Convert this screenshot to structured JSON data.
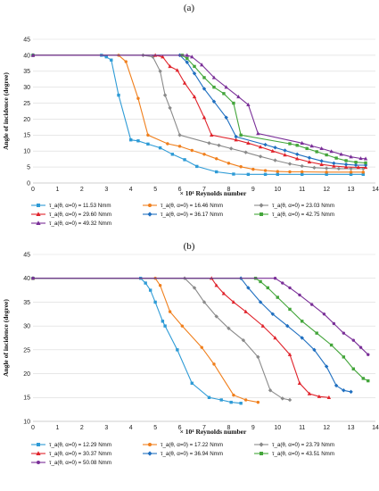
{
  "chart_data": [
    {
      "type": "line",
      "panel_label": "(a)",
      "xlabel": "Reynolds number",
      "xlabel_prefix": "× 10⁴",
      "ylabel": "Angle of incidence (degree)",
      "xlim": [
        0,
        14
      ],
      "ylim": [
        0,
        45
      ],
      "xticks": [
        0,
        1,
        2,
        3,
        4,
        5,
        6,
        7,
        8,
        9,
        10,
        11,
        12,
        13,
        14
      ],
      "yticks": [
        0,
        5,
        10,
        15,
        20,
        25,
        30,
        35,
        40,
        45
      ],
      "grid": "horizontal",
      "legend_position": "bottom",
      "series": [
        {
          "name": "τ_a(θ, α=0) = 11.53 Nmm",
          "color": "#2e9bd6",
          "marker": "square",
          "points": [
            [
              0,
              40
            ],
            [
              2.8,
              40
            ],
            [
              3.0,
              39.5
            ],
            [
              3.2,
              38.5
            ],
            [
              3.5,
              27.5
            ],
            [
              4.0,
              13.5
            ],
            [
              4.3,
              13.2
            ],
            [
              4.7,
              12.2
            ],
            [
              5.2,
              11
            ],
            [
              5.7,
              9
            ],
            [
              6.2,
              7.3
            ],
            [
              6.7,
              5.2
            ],
            [
              7.5,
              3.5
            ],
            [
              8.2,
              2.8
            ],
            [
              8.8,
              2.7
            ],
            [
              9.5,
              2.7
            ],
            [
              10,
              2.7
            ],
            [
              11,
              2.7
            ],
            [
              12,
              2.7
            ],
            [
              13,
              2.7
            ],
            [
              13.5,
              2.7
            ]
          ]
        },
        {
          "name": "τ_a(θ, α=0) = 16.46 Nmm",
          "color": "#f07f1c",
          "marker": "circle",
          "points": [
            [
              0,
              40
            ],
            [
              3.5,
              40
            ],
            [
              3.8,
              38
            ],
            [
              4.3,
              26.5
            ],
            [
              4.7,
              15
            ],
            [
              5.5,
              12.3
            ],
            [
              6.0,
              11.5
            ],
            [
              6.5,
              10.2
            ],
            [
              7.0,
              9
            ],
            [
              7.5,
              7.6
            ],
            [
              8.0,
              6.2
            ],
            [
              8.5,
              5.1
            ],
            [
              9.0,
              4.3
            ],
            [
              9.5,
              3.9
            ],
            [
              10,
              3.6
            ],
            [
              10.5,
              3.5
            ],
            [
              11,
              3.5
            ],
            [
              12,
              3.4
            ],
            [
              13,
              3.4
            ],
            [
              13.5,
              3.4
            ]
          ]
        },
        {
          "name": "τ_a(θ, α=0) = 23.03 Nmm",
          "color": "#8a8a8a",
          "marker": "diamond",
          "points": [
            [
              0,
              40
            ],
            [
              4.5,
              40
            ],
            [
              4.9,
              39.5
            ],
            [
              5.2,
              35
            ],
            [
              5.4,
              27.5
            ],
            [
              5.6,
              23.5
            ],
            [
              6.0,
              15
            ],
            [
              7.2,
              12.5
            ],
            [
              7.6,
              11.8
            ],
            [
              8.1,
              10.8
            ],
            [
              8.7,
              9.6
            ],
            [
              9.3,
              8.3
            ],
            [
              9.9,
              7.1
            ],
            [
              10.5,
              6
            ],
            [
              11,
              5.3
            ],
            [
              11.5,
              4.8
            ],
            [
              12,
              4.6
            ],
            [
              12.5,
              4.5
            ],
            [
              13,
              4.5
            ],
            [
              13.5,
              4.5
            ]
          ]
        },
        {
          "name": "τ_a(θ, α=0) = 29.60 Nmm",
          "color": "#e0232b",
          "marker": "triangle",
          "points": [
            [
              0,
              40
            ],
            [
              5.0,
              40
            ],
            [
              5.3,
              39.5
            ],
            [
              5.6,
              36.5
            ],
            [
              5.9,
              35.3
            ],
            [
              6.2,
              31.3
            ],
            [
              6.6,
              27
            ],
            [
              7.0,
              20.5
            ],
            [
              7.3,
              15
            ],
            [
              8.3,
              13.5
            ],
            [
              8.8,
              12.5
            ],
            [
              9.3,
              11.3
            ],
            [
              9.8,
              10
            ],
            [
              10.3,
              8.8
            ],
            [
              10.8,
              7.6
            ],
            [
              11.3,
              6.6
            ],
            [
              11.8,
              5.8
            ],
            [
              12.3,
              5.3
            ],
            [
              12.8,
              5
            ],
            [
              13.3,
              4.9
            ],
            [
              13.6,
              4.9
            ]
          ]
        },
        {
          "name": "τ_a(θ, α=0) = 36.17 Nmm",
          "color": "#1f6fc0",
          "marker": "diamond",
          "points": [
            [
              0,
              40
            ],
            [
              6.0,
              40
            ],
            [
              6.3,
              37.8
            ],
            [
              6.6,
              34.3
            ],
            [
              7.0,
              29.5
            ],
            [
              7.4,
              25.5
            ],
            [
              7.9,
              20.5
            ],
            [
              8.3,
              14.5
            ],
            [
              9.5,
              12
            ],
            [
              9.9,
              11.1
            ],
            [
              10.3,
              10.2
            ],
            [
              10.8,
              9
            ],
            [
              11.3,
              7.9
            ],
            [
              11.8,
              6.9
            ],
            [
              12.3,
              6.2
            ],
            [
              12.8,
              5.8
            ],
            [
              13.2,
              5.6
            ],
            [
              13.6,
              5.6
            ]
          ]
        },
        {
          "name": "τ_a(θ, α=0) = 42.75 Nmm",
          "color": "#43a53a",
          "marker": "square",
          "points": [
            [
              0,
              40
            ],
            [
              6.1,
              40
            ],
            [
              6.3,
              39
            ],
            [
              6.6,
              36.5
            ],
            [
              7.0,
              33
            ],
            [
              7.4,
              30
            ],
            [
              7.8,
              28
            ],
            [
              8.2,
              25
            ],
            [
              8.5,
              15
            ],
            [
              10.5,
              12.3
            ],
            [
              10.8,
              11.8
            ],
            [
              11.2,
              10.8
            ],
            [
              11.6,
              9.8
            ],
            [
              12.0,
              8.8
            ],
            [
              12.4,
              7.8
            ],
            [
              12.8,
              7
            ],
            [
              13.2,
              6.5
            ],
            [
              13.6,
              6.3
            ]
          ]
        },
        {
          "name": "τ_a(θ, α=0) = 49.32 Nmm",
          "color": "#7a2f98",
          "marker": "triangle",
          "points": [
            [
              0,
              40
            ],
            [
              6.3,
              40
            ],
            [
              6.5,
              39.5
            ],
            [
              6.9,
              37
            ],
            [
              7.4,
              33
            ],
            [
              7.9,
              30
            ],
            [
              8.4,
              27
            ],
            [
              8.8,
              24.5
            ],
            [
              9.2,
              15.5
            ],
            [
              11.0,
              12.5
            ],
            [
              11.4,
              11.6
            ],
            [
              11.8,
              10.8
            ],
            [
              12.2,
              9.9
            ],
            [
              12.6,
              9
            ],
            [
              13.0,
              8.2
            ],
            [
              13.4,
              7.7
            ],
            [
              13.6,
              7.6
            ]
          ]
        }
      ]
    },
    {
      "type": "line",
      "panel_label": "(b)",
      "xlabel": "Reynolds number",
      "xlabel_prefix": "× 10⁴",
      "ylabel": "Angle of incidence (degree)",
      "xlim": [
        0,
        14
      ],
      "ylim": [
        10,
        45
      ],
      "xticks": [
        0,
        1,
        2,
        3,
        4,
        5,
        6,
        7,
        8,
        9,
        10,
        11,
        12,
        13,
        14
      ],
      "yticks": [
        10,
        15,
        20,
        25,
        30,
        35,
        40,
        45
      ],
      "grid": "horizontal",
      "legend_position": "bottom",
      "series": [
        {
          "name": "τ_a(θ, α=0) = 12.29 Nmm",
          "color": "#2e9bd6",
          "marker": "square",
          "points": [
            [
              0,
              40
            ],
            [
              4.4,
              40
            ],
            [
              4.6,
              39
            ],
            [
              4.8,
              37.5
            ],
            [
              5.0,
              35
            ],
            [
              5.3,
              31
            ],
            [
              5.4,
              30
            ],
            [
              5.9,
              25
            ],
            [
              6.5,
              18
            ],
            [
              7.2,
              15
            ],
            [
              7.7,
              14.5
            ],
            [
              8.1,
              14
            ],
            [
              8.5,
              13.8
            ]
          ]
        },
        {
          "name": "τ_a(θ, α=0) = 17.22 Nmm",
          "color": "#f07f1c",
          "marker": "circle",
          "points": [
            [
              0,
              40
            ],
            [
              5.0,
              40
            ],
            [
              5.2,
              38.5
            ],
            [
              5.6,
              33
            ],
            [
              6.1,
              30
            ],
            [
              6.9,
              25.5
            ],
            [
              7.4,
              22
            ],
            [
              8.2,
              15.5
            ],
            [
              8.7,
              14.5
            ],
            [
              9.2,
              14
            ]
          ]
        },
        {
          "name": "τ_a(θ, α=0) = 23.79 Nmm",
          "color": "#8a8a8a",
          "marker": "diamond",
          "points": [
            [
              0,
              40
            ],
            [
              6.2,
              40
            ],
            [
              6.6,
              38
            ],
            [
              7.0,
              35
            ],
            [
              7.5,
              32
            ],
            [
              8.0,
              29.5
            ],
            [
              8.6,
              27
            ],
            [
              9.2,
              23.5
            ],
            [
              9.7,
              16.5
            ],
            [
              10.2,
              14.8
            ],
            [
              10.5,
              14.5
            ]
          ]
        },
        {
          "name": "τ_a(θ, α=0) = 30.37 Nmm",
          "color": "#e0232b",
          "marker": "triangle",
          "points": [
            [
              0,
              40
            ],
            [
              7.3,
              40
            ],
            [
              7.5,
              38.5
            ],
            [
              7.8,
              36.8
            ],
            [
              8.2,
              35
            ],
            [
              8.7,
              33
            ],
            [
              9.4,
              30
            ],
            [
              9.9,
              27.5
            ],
            [
              10.5,
              24
            ],
            [
              10.9,
              18
            ],
            [
              11.3,
              15.8
            ],
            [
              11.7,
              15.2
            ],
            [
              12.1,
              15
            ]
          ]
        },
        {
          "name": "τ_a(θ, α=0) = 36.94 Nmm",
          "color": "#1f6fc0",
          "marker": "diamond",
          "points": [
            [
              0,
              40
            ],
            [
              8.5,
              40
            ],
            [
              8.8,
              38
            ],
            [
              9.3,
              35
            ],
            [
              9.8,
              32.5
            ],
            [
              10.4,
              30
            ],
            [
              11.0,
              27.5
            ],
            [
              11.5,
              25
            ],
            [
              12.0,
              21.5
            ],
            [
              12.4,
              17.5
            ],
            [
              12.7,
              16.5
            ],
            [
              13.0,
              16.2
            ]
          ]
        },
        {
          "name": "τ_a(θ, α=0) = 43.51 Nmm",
          "color": "#43a53a",
          "marker": "square",
          "points": [
            [
              0,
              40
            ],
            [
              9.1,
              40
            ],
            [
              9.3,
              39.3
            ],
            [
              9.6,
              38
            ],
            [
              10.0,
              36
            ],
            [
              10.5,
              33.5
            ],
            [
              11.0,
              31
            ],
            [
              11.6,
              28.5
            ],
            [
              12.2,
              26
            ],
            [
              12.7,
              23.5
            ],
            [
              13.1,
              21
            ],
            [
              13.5,
              19
            ],
            [
              13.7,
              18.5
            ]
          ]
        },
        {
          "name": "τ_a(θ, α=0) = 50.08 Nmm",
          "color": "#7a2f98",
          "marker": "circle",
          "points": [
            [
              0,
              40
            ],
            [
              9.9,
              40
            ],
            [
              10.2,
              39
            ],
            [
              10.5,
              38
            ],
            [
              10.9,
              36.5
            ],
            [
              11.4,
              34.5
            ],
            [
              11.9,
              32.5
            ],
            [
              12.3,
              30.5
            ],
            [
              12.7,
              28.5
            ],
            [
              13.1,
              27
            ],
            [
              13.4,
              25.5
            ],
            [
              13.7,
              24
            ]
          ]
        }
      ]
    }
  ]
}
